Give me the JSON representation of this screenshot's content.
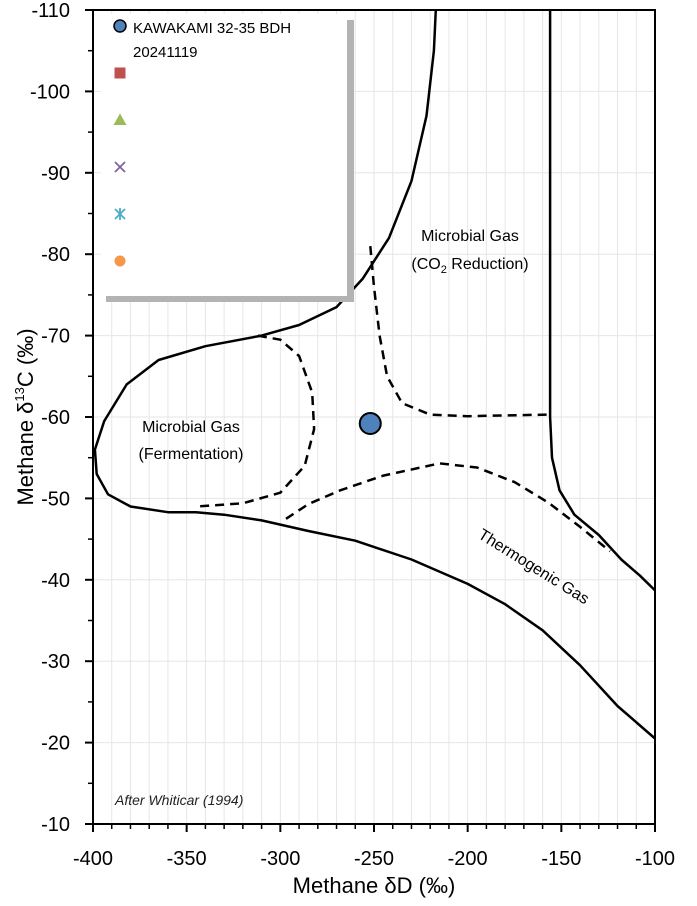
{
  "chart_data": {
    "type": "scatter",
    "xlabel": "Methane δD (‰)",
    "ylabel_prefix": "Methane δ",
    "ylabel_sup": "13",
    "ylabel_suffix": "C (‰)",
    "xlim": [
      -400,
      -100
    ],
    "ylim": [
      -10,
      -110
    ],
    "y_inverted": true,
    "x_ticks": [
      -400,
      -350,
      -300,
      -250,
      -200,
      -150,
      -100
    ],
    "x_tick_labels": [
      "-400",
      "-350",
      "-300",
      "-250",
      "-200",
      "-150",
      "-100"
    ],
    "y_ticks": [
      -10,
      -20,
      -30,
      -40,
      -50,
      -60,
      -70,
      -80,
      -90,
      -100,
      -110
    ],
    "y_tick_labels": [
      "-10",
      "-20",
      "-30",
      "-40",
      "-50",
      "-60",
      "-70",
      "-80",
      "-90",
      "-100",
      "-110"
    ],
    "grid": true,
    "legend_position": "top-left",
    "series": [
      {
        "name": "KAWAKAMI 32-35 BDH 20241119",
        "marker": "circle",
        "color": "#4f81bd",
        "points": [
          [
            -252,
            -59.2
          ]
        ]
      },
      {
        "name": "",
        "marker": "square",
        "color": "#c0504d",
        "points": []
      },
      {
        "name": "",
        "marker": "triangle",
        "color": "#9bbb59",
        "points": []
      },
      {
        "name": "",
        "marker": "x",
        "color": "#8064a2",
        "points": []
      },
      {
        "name": "",
        "marker": "star",
        "color": "#4bacc6",
        "points": []
      },
      {
        "name": "",
        "marker": "circle",
        "color": "#f79646",
        "points": []
      }
    ],
    "legend_entry_1_line1": "KAWAKAMI 32-35 BDH",
    "legend_entry_1_line2": "20241119",
    "annotations": {
      "co2_line1": "Microbial Gas",
      "co2_line2_prefix": "(CO",
      "co2_line2_sub": "2",
      "co2_line2_suffix": " Reduction)",
      "ferm_line1": "Microbial Gas",
      "ferm_line2": "(Fermentation)",
      "thermo": "Thermogenic Gas",
      "credit": "After Whiticar (1994)"
    }
  }
}
